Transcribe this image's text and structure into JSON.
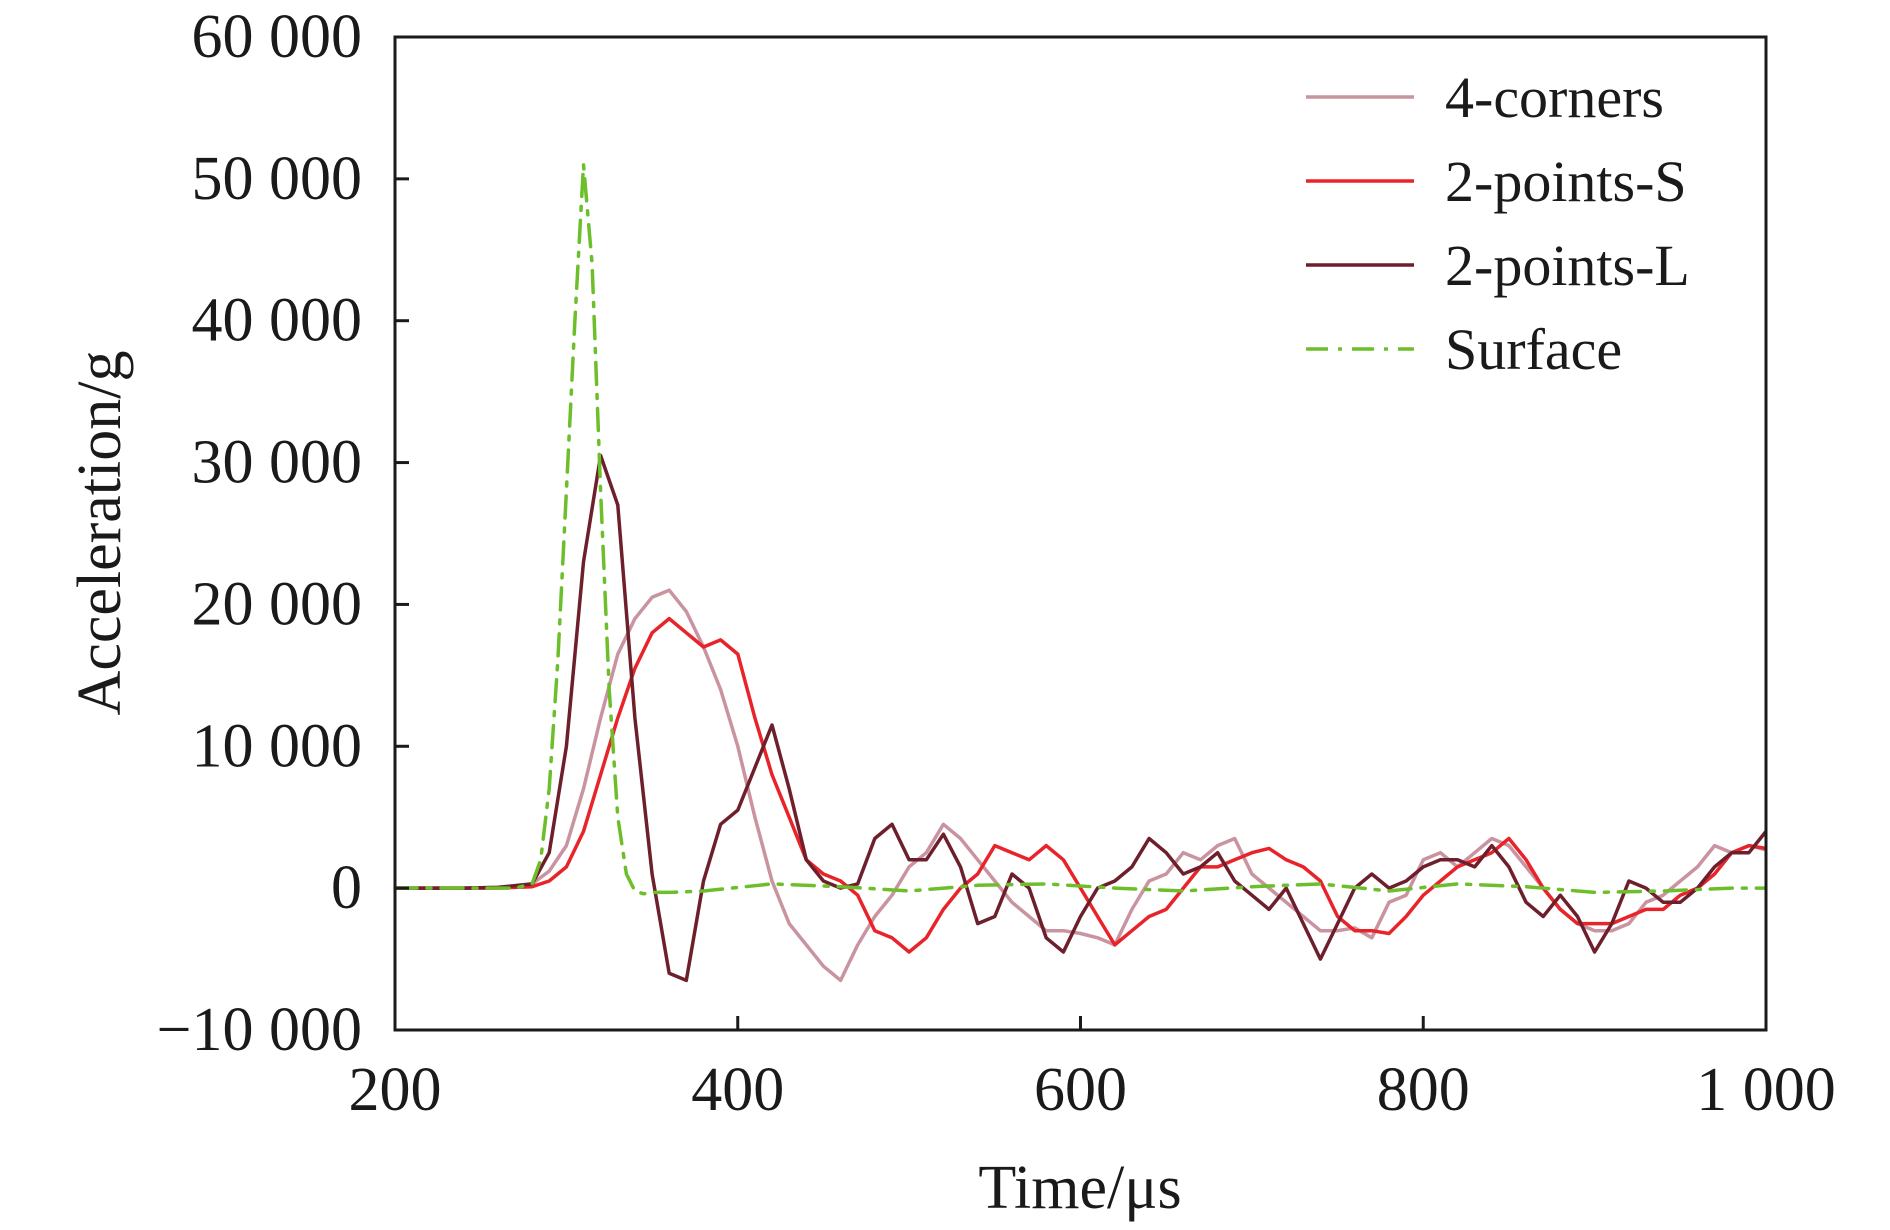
{
  "chart_data": {
    "type": "line",
    "xlabel": "Time/μs",
    "ylabel": "Acceleration/g",
    "xlim": [
      200,
      1000
    ],
    "ylim": [
      -10000,
      60000
    ],
    "xticks": [
      200,
      400,
      600,
      800,
      1000
    ],
    "xtick_labels": [
      "200",
      "400",
      "600",
      "800",
      "1 000"
    ],
    "yticks": [
      -10000,
      0,
      10000,
      20000,
      30000,
      40000,
      50000,
      60000
    ],
    "ytick_labels": [
      "−10 000",
      "0",
      "10 000",
      "20 000",
      "30 000",
      "40 000",
      "50 000",
      "60 000"
    ],
    "grid": false,
    "legend_position": "top-right",
    "series": [
      {
        "name": "4-corners",
        "color": "#c9939f",
        "dash": "solid",
        "x": [
          200,
          220,
          240,
          260,
          280,
          290,
          300,
          310,
          320,
          330,
          340,
          350,
          360,
          370,
          380,
          390,
          400,
          410,
          420,
          430,
          440,
          450,
          460,
          470,
          480,
          490,
          500,
          510,
          520,
          530,
          540,
          550,
          560,
          570,
          580,
          590,
          600,
          610,
          620,
          630,
          640,
          650,
          660,
          670,
          680,
          690,
          700,
          710,
          720,
          730,
          740,
          750,
          760,
          770,
          780,
          790,
          800,
          810,
          820,
          830,
          840,
          850,
          860,
          870,
          880,
          890,
          900,
          910,
          920,
          930,
          940,
          950,
          960,
          970,
          980,
          990,
          1000
        ],
        "y": [
          0,
          0,
          0,
          50,
          300,
          1200,
          3000,
          7000,
          12000,
          16500,
          19000,
          20500,
          21000,
          19500,
          17000,
          14000,
          10000,
          5000,
          500,
          -2500,
          -4000,
          -5500,
          -6500,
          -4000,
          -2000,
          -500,
          1500,
          2500,
          4500,
          3500,
          2000,
          500,
          -1000,
          -2000,
          -3000,
          -3000,
          -3200,
          -3500,
          -4000,
          -1500,
          500,
          1000,
          2500,
          2000,
          3000,
          3500,
          1000,
          0,
          -1000,
          -2000,
          -3000,
          -3000,
          -2800,
          -3500,
          -1000,
          -500,
          2000,
          2500,
          1500,
          2500,
          3500,
          3000,
          1500,
          0,
          -1500,
          -2500,
          -3000,
          -3000,
          -2500,
          -1000,
          -500,
          500,
          1500,
          3000,
          2500,
          3000,
          2700
        ]
      },
      {
        "name": "2-points-S",
        "color": "#e8242a",
        "dash": "solid",
        "x": [
          200,
          220,
          240,
          260,
          280,
          290,
          300,
          310,
          320,
          330,
          340,
          350,
          360,
          370,
          380,
          390,
          400,
          410,
          420,
          430,
          440,
          450,
          460,
          470,
          480,
          490,
          500,
          510,
          520,
          530,
          540,
          550,
          560,
          570,
          580,
          590,
          600,
          610,
          620,
          630,
          640,
          650,
          660,
          670,
          680,
          690,
          700,
          710,
          720,
          730,
          740,
          750,
          760,
          770,
          780,
          790,
          800,
          810,
          820,
          830,
          840,
          850,
          860,
          870,
          880,
          890,
          900,
          910,
          920,
          930,
          940,
          950,
          960,
          970,
          980,
          990,
          1000
        ],
        "y": [
          0,
          0,
          0,
          0,
          100,
          500,
          1500,
          4000,
          8000,
          12000,
          15500,
          18000,
          19000,
          18000,
          17000,
          17500,
          16500,
          12000,
          8000,
          5000,
          2000,
          1000,
          500,
          -500,
          -3000,
          -3500,
          -4500,
          -3500,
          -1500,
          0,
          1000,
          3000,
          2500,
          2000,
          3000,
          2000,
          0,
          -2000,
          -4000,
          -3000,
          -2000,
          -1500,
          0,
          1500,
          1500,
          2000,
          2500,
          2800,
          2000,
          1500,
          500,
          -2000,
          -3000,
          -3000,
          -3200,
          -2000,
          -500,
          500,
          1500,
          2000,
          2500,
          3500,
          2000,
          0,
          -1500,
          -2500,
          -2500,
          -2500,
          -2000,
          -1500,
          -1500,
          -500,
          0,
          1000,
          2500,
          3000,
          2800
        ]
      },
      {
        "name": "2-points-L",
        "color": "#6e1f2c",
        "dash": "solid",
        "x": [
          200,
          220,
          240,
          260,
          280,
          290,
          300,
          310,
          320,
          330,
          340,
          350,
          360,
          370,
          380,
          390,
          400,
          410,
          420,
          430,
          440,
          450,
          460,
          470,
          480,
          490,
          500,
          510,
          520,
          530,
          540,
          550,
          560,
          570,
          580,
          590,
          600,
          610,
          620,
          630,
          640,
          650,
          660,
          670,
          680,
          690,
          700,
          710,
          720,
          730,
          740,
          750,
          760,
          770,
          780,
          790,
          800,
          810,
          820,
          830,
          840,
          850,
          860,
          870,
          880,
          890,
          900,
          910,
          920,
          930,
          940,
          950,
          960,
          970,
          980,
          990,
          1000
        ],
        "y": [
          0,
          0,
          0,
          50,
          300,
          2500,
          10000,
          23000,
          30500,
          27000,
          12000,
          1000,
          -6000,
          -6500,
          500,
          4500,
          5500,
          8500,
          11500,
          7000,
          2000,
          500,
          0,
          300,
          3500,
          4500,
          2000,
          2000,
          3800,
          1500,
          -2500,
          -2000,
          1000,
          0,
          -3500,
          -4500,
          -2000,
          0,
          500,
          1500,
          3500,
          2500,
          1000,
          1500,
          2500,
          500,
          -500,
          -1500,
          0,
          -2500,
          -5000,
          -2500,
          0,
          1000,
          0,
          500,
          1500,
          2000,
          2000,
          1500,
          3000,
          1500,
          -1000,
          -2000,
          -500,
          -2000,
          -4500,
          -2500,
          500,
          0,
          -1000,
          -1000,
          0,
          1500,
          2500,
          2500,
          4000
        ]
      },
      {
        "name": "Surface",
        "color": "#6cbf2b",
        "dash": "dashdot",
        "x": [
          200,
          240,
          270,
          280,
          285,
          290,
          295,
          300,
          305,
          310,
          315,
          320,
          325,
          330,
          335,
          340,
          345,
          350,
          360,
          380,
          420,
          460,
          500,
          540,
          580,
          620,
          660,
          700,
          740,
          780,
          820,
          860,
          900,
          940,
          980,
          1000
        ],
        "y": [
          0,
          0,
          0,
          300,
          2000,
          7000,
          16000,
          28000,
          40000,
          51000,
          44000,
          28000,
          14000,
          5000,
          1000,
          -200,
          -400,
          -300,
          -300,
          -200,
          300,
          100,
          -200,
          200,
          300,
          0,
          -200,
          100,
          300,
          -200,
          300,
          100,
          -300,
          -200,
          0,
          0
        ]
      }
    ]
  }
}
